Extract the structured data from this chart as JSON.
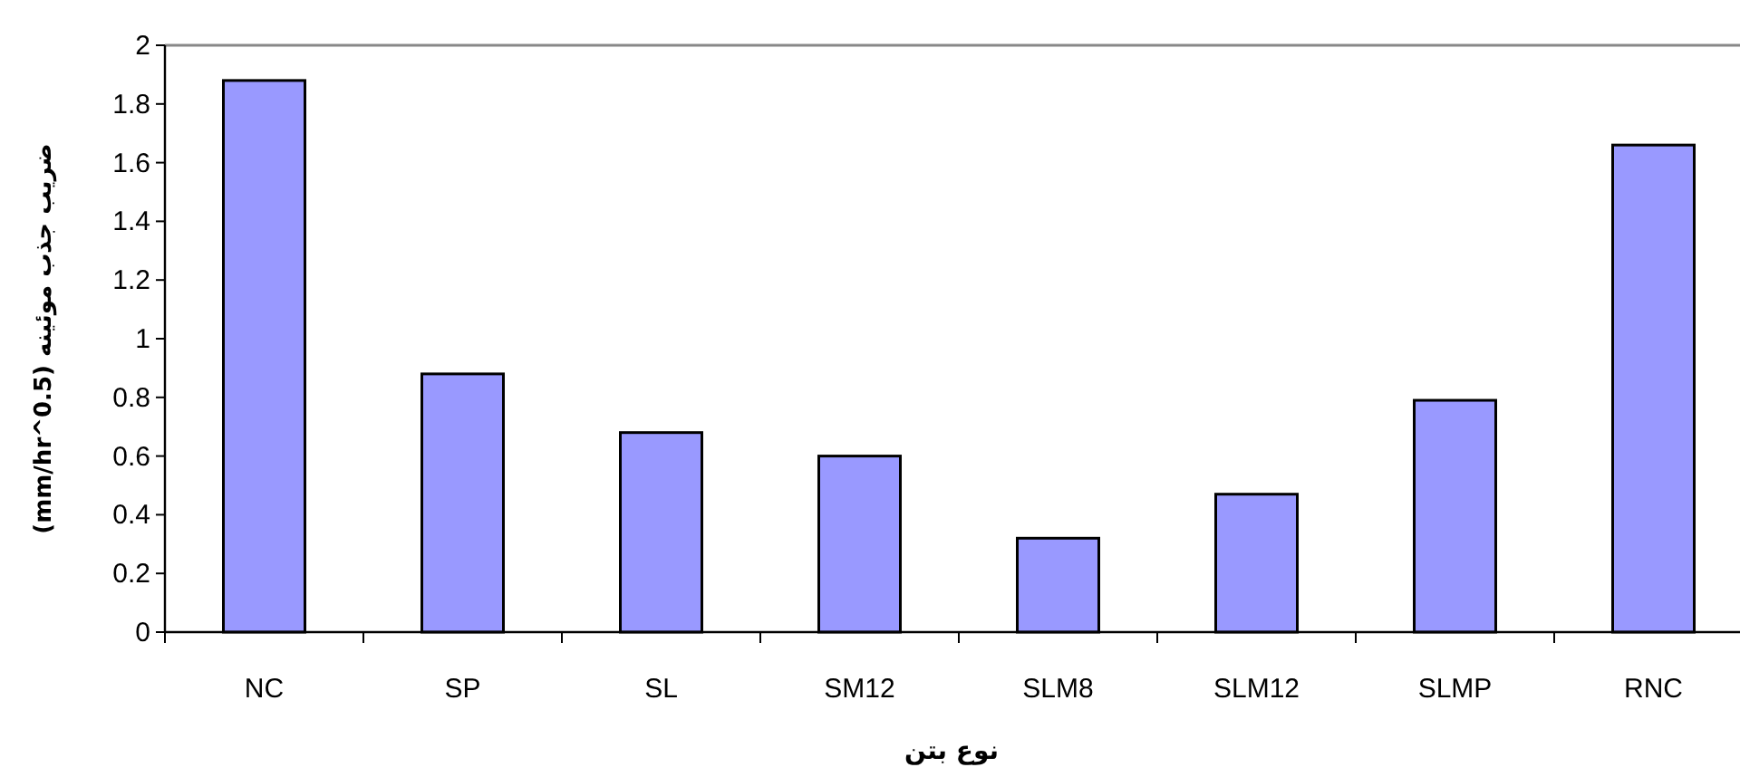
{
  "chart_data": {
    "type": "bar",
    "xlabel": "نوع بتن",
    "ylabel": "ضریب جذب موئینه (mm/hr^0.5)",
    "categories": [
      "NC",
      "SP",
      "SL",
      "SM12",
      "SLM8",
      "SLM12",
      "SLMP",
      "RNC"
    ],
    "values": [
      1.88,
      0.88,
      0.68,
      0.6,
      0.32,
      0.47,
      0.79,
      1.66
    ],
    "color": "#9999ff",
    "ylim": [
      0,
      2
    ],
    "yticks": [
      0,
      0.2,
      0.4,
      0.6,
      0.8,
      1,
      1.2,
      1.4,
      1.6,
      1.8,
      2
    ]
  }
}
